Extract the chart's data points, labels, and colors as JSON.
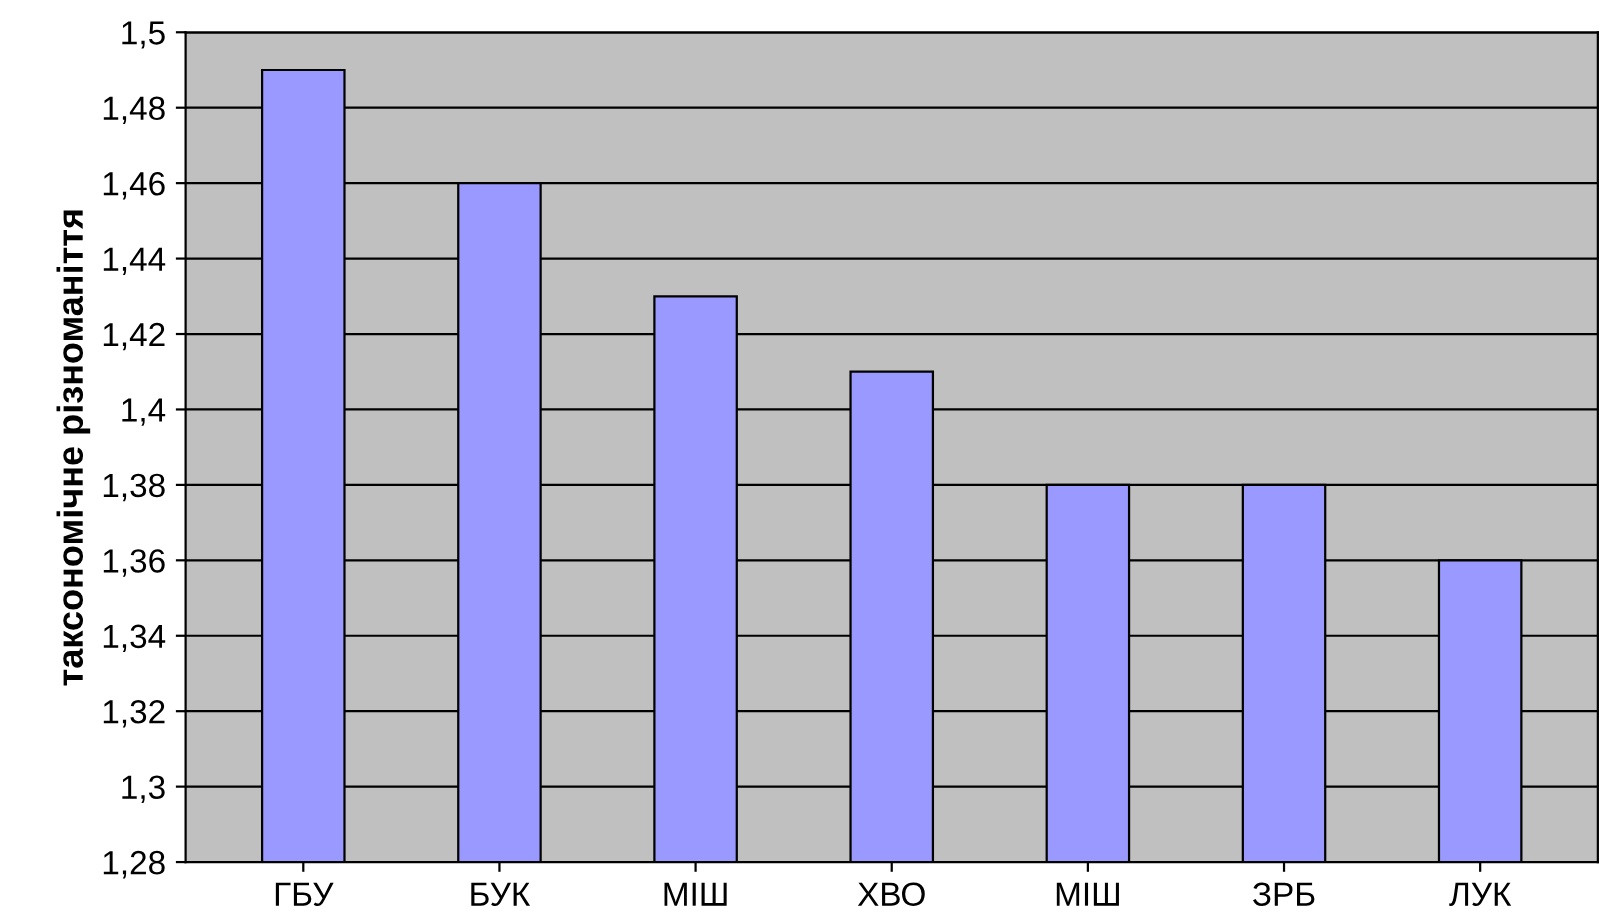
{
  "chart_data": {
    "type": "bar",
    "ylabel": "таксономічне різноманіття",
    "categories": [
      "ГБУ",
      "БУК",
      "МІШ",
      "ХВО",
      "МІШ",
      "ЗРБ",
      "ЛУК"
    ],
    "values": [
      1.49,
      1.46,
      1.43,
      1.41,
      1.38,
      1.38,
      1.36
    ],
    "color": "#9999ff",
    "ylim": [
      1.28,
      1.5
    ],
    "yticks": [
      {
        "value": 1.28,
        "label": "1,28"
      },
      {
        "value": 1.3,
        "label": "1,3"
      },
      {
        "value": 1.32,
        "label": "1,32"
      },
      {
        "value": 1.34,
        "label": "1,34"
      },
      {
        "value": 1.36,
        "label": "1,36"
      },
      {
        "value": 1.38,
        "label": "1,38"
      },
      {
        "value": 1.4,
        "label": "1,4"
      },
      {
        "value": 1.42,
        "label": "1,42"
      },
      {
        "value": 1.44,
        "label": "1,44"
      },
      {
        "value": 1.46,
        "label": "1,46"
      },
      {
        "value": 1.48,
        "label": "1,48"
      },
      {
        "value": 1.5,
        "label": "1,5"
      }
    ],
    "grid": "y"
  }
}
